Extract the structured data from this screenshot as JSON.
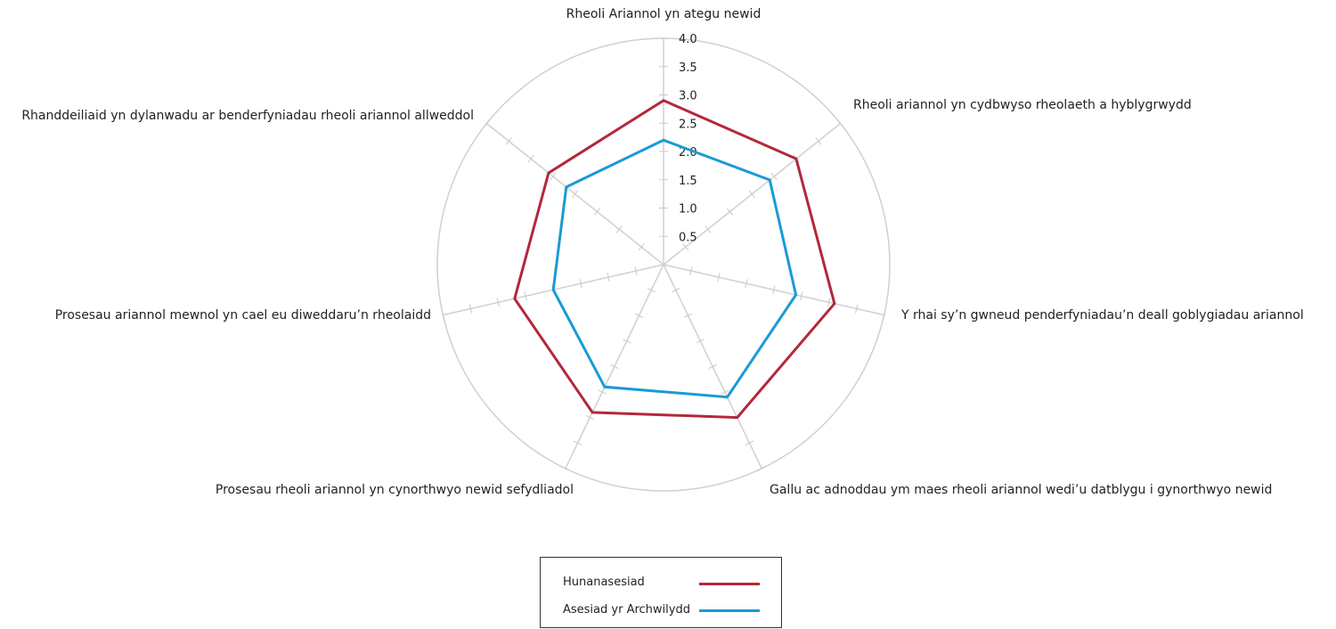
{
  "chart_data": {
    "type": "radar",
    "title": "",
    "axes": [
      "Rheoli Ariannol yn ategu newid",
      "Rheoli ariannol yn cydbwyso rheolaeth a hyblygrwydd",
      "Y rhai sy’n gwneud penderfyniadau’n deall goblygiadau ariannol",
      "Gallu ac adnoddau ym maes rheoli ariannol wedi’u datblygu i gynorthwyo newid",
      "Prosesau rheoli ariannol yn cynorthwyo newid sefydliadol",
      "Prosesau ariannol mewnol yn cael eu diweddaru’n rheolaidd",
      "Rhanddeiliaid yn dylanwadu ar benderfyniadau rheoli ariannol allweddol"
    ],
    "ticks": [
      "0.5",
      "1.0",
      "1.5",
      "2.0",
      "2.5",
      "3.0",
      "3.5",
      "4.0"
    ],
    "rlim": [
      0,
      4
    ],
    "grid": true,
    "legend_position": "bottom-center",
    "series": [
      {
        "name": "Hunanasesiad",
        "color": "#b3283a",
        "values": [
          2.9,
          3.0,
          3.1,
          3.0,
          2.9,
          2.7,
          2.6
        ]
      },
      {
        "name": "Asesiad yr Archwilydd",
        "color": "#1a9ad6",
        "values": [
          2.2,
          2.4,
          2.4,
          2.6,
          2.4,
          2.0,
          2.2
        ]
      }
    ]
  }
}
